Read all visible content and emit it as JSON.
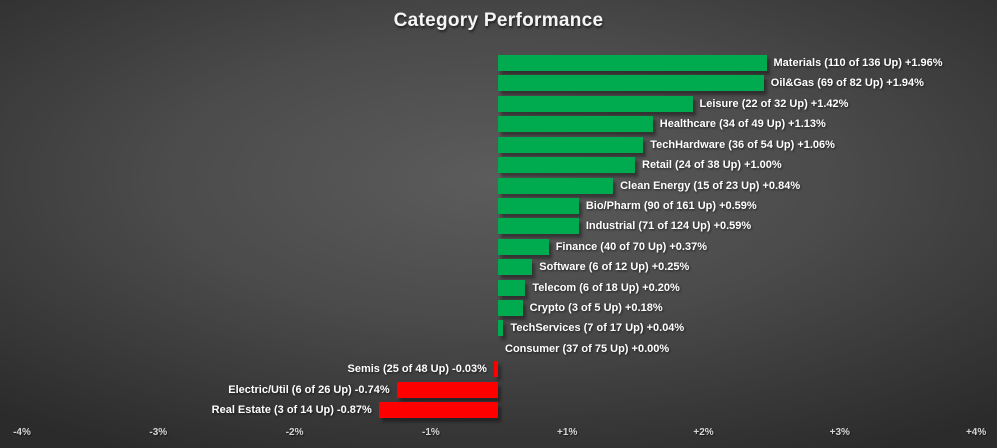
{
  "title": "Category Performance",
  "colors": {
    "positive_bar": "#00AB50",
    "negative_bar": "#FF0000",
    "label_text": "#FFFFFF",
    "axis_text": "#D6D6D6",
    "background_center": "#5C5C5C",
    "background_edge": "#2B2B2B"
  },
  "chart_data": {
    "type": "bar",
    "orientation": "horizontal",
    "title": "Category Performance",
    "xlabel": "",
    "ylabel": "",
    "xlim": [
      -4,
      4
    ],
    "grid": false,
    "value_unit": "percent",
    "categories": [
      "Materials",
      "Oil&Gas",
      "Leisure",
      "Healthcare",
      "TechHardware",
      "Retail",
      "Clean Energy",
      "Bio/Pharm",
      "Industrial",
      "Finance",
      "Software",
      "Telecom",
      "Crypto",
      "TechServices",
      "Consumer",
      "Semis",
      "Electric/Util",
      "Real Estate"
    ],
    "up_counts": [
      110,
      69,
      22,
      34,
      36,
      24,
      15,
      90,
      71,
      40,
      6,
      6,
      3,
      7,
      37,
      25,
      6,
      3
    ],
    "totals": [
      136,
      82,
      32,
      49,
      54,
      38,
      23,
      161,
      124,
      70,
      12,
      18,
      5,
      17,
      75,
      48,
      26,
      14
    ],
    "values": [
      1.96,
      1.94,
      1.42,
      1.13,
      1.06,
      1.0,
      0.84,
      0.59,
      0.59,
      0.37,
      0.25,
      0.2,
      0.18,
      0.04,
      0.0,
      -0.03,
      -0.74,
      -0.87
    ],
    "labels": [
      "Materials (110 of 136 Up) +1.96%",
      "Oil&Gas (69 of 82 Up) +1.94%",
      "Leisure (22 of 32 Up) +1.42%",
      "Healthcare (34 of 49 Up) +1.13%",
      "TechHardware (36 of 54 Up) +1.06%",
      "Retail (24 of 38 Up) +1.00%",
      "Clean Energy (15 of 23 Up) +0.84%",
      "Bio/Pharm (90 of 161 Up) +0.59%",
      "Industrial (71 of 124 Up) +0.59%",
      "Finance (40 of 70 Up) +0.37%",
      "Software (6 of 12 Up) +0.25%",
      "Telecom (6 of 18 Up) +0.20%",
      "Crypto (3 of 5 Up) +0.18%",
      "TechServices (7 of 17 Up) +0.04%",
      "Consumer (37 of 75 Up) +0.00%",
      "Semis (25 of 48 Up) -0.03%",
      "Electric/Util (6 of 26 Up) -0.74%",
      "Real Estate (3 of 14 Up) -0.87%"
    ],
    "x_tick_labels": [
      "-4%",
      "-3%",
      "-2%",
      "-1%",
      "+1%",
      "+2%",
      "+3%",
      "+4%"
    ],
    "legend": null
  }
}
